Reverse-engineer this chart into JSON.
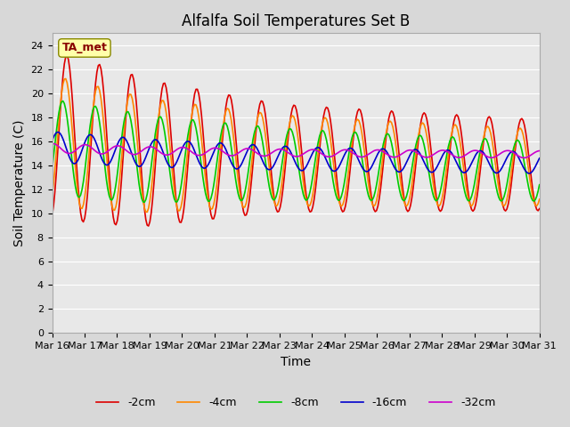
{
  "title": "Alfalfa Soil Temperatures Set B",
  "xlabel": "Time",
  "ylabel": "Soil Temperature (C)",
  "ylim": [
    0,
    25
  ],
  "annotation_text": "TA_met",
  "annotation_bg": "#ffffaa",
  "annotation_border": "#888800",
  "series": [
    {
      "label": "-2cm",
      "color": "#dd0000",
      "linewidth": 1.2
    },
    {
      "label": "-4cm",
      "color": "#ff8800",
      "linewidth": 1.2
    },
    {
      "label": "-8cm",
      "color": "#00cc00",
      "linewidth": 1.2
    },
    {
      "label": "-16cm",
      "color": "#0000cc",
      "linewidth": 1.2
    },
    {
      "label": "-32cm",
      "color": "#cc00cc",
      "linewidth": 1.2
    }
  ],
  "tick_label_fontsize": 8,
  "axis_label_fontsize": 10,
  "title_fontsize": 12,
  "legend_fontsize": 9
}
